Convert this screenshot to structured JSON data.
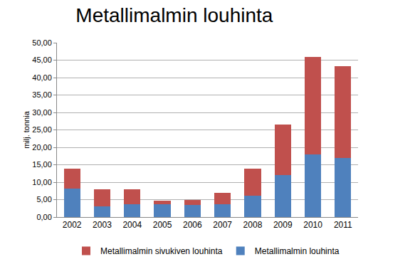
{
  "chart_data": {
    "type": "bar",
    "stacked": true,
    "title": "Metallimalmin louhinta",
    "y_label": "milj. tonnia",
    "categories": [
      "2002",
      "2003",
      "2004",
      "2005",
      "2006",
      "2007",
      "2008",
      "2009",
      "2010",
      "2011"
    ],
    "series": [
      {
        "name": "Metallimalmin louhinta",
        "color": "#4f81bd",
        "values": [
          8.2,
          3.1,
          3.7,
          3.6,
          3.4,
          3.7,
          6.2,
          12.0,
          18.0,
          17.0
        ]
      },
      {
        "name": "Metallimalmin sivukiven louhinta",
        "color": "#c0504d",
        "values": [
          5.6,
          4.9,
          4.3,
          1.1,
          1.6,
          3.3,
          7.6,
          14.6,
          27.9,
          26.2
        ]
      }
    ],
    "ylim": [
      0,
      50
    ],
    "yticks": [
      {
        "value": 0,
        "label": "0,00"
      },
      {
        "value": 5,
        "label": "5,00"
      },
      {
        "value": 10,
        "label": "10,00"
      },
      {
        "value": 15,
        "label": "15,00"
      },
      {
        "value": 20,
        "label": "20,00"
      },
      {
        "value": 25,
        "label": "25,00"
      },
      {
        "value": 30,
        "label": "30,00"
      },
      {
        "value": 35,
        "label": "35,00"
      },
      {
        "value": 40,
        "label": "40,00"
      },
      {
        "value": 45,
        "label": "45,00"
      },
      {
        "value": 50,
        "label": "50,00"
      }
    ],
    "grid": true,
    "legend": "bottom"
  }
}
